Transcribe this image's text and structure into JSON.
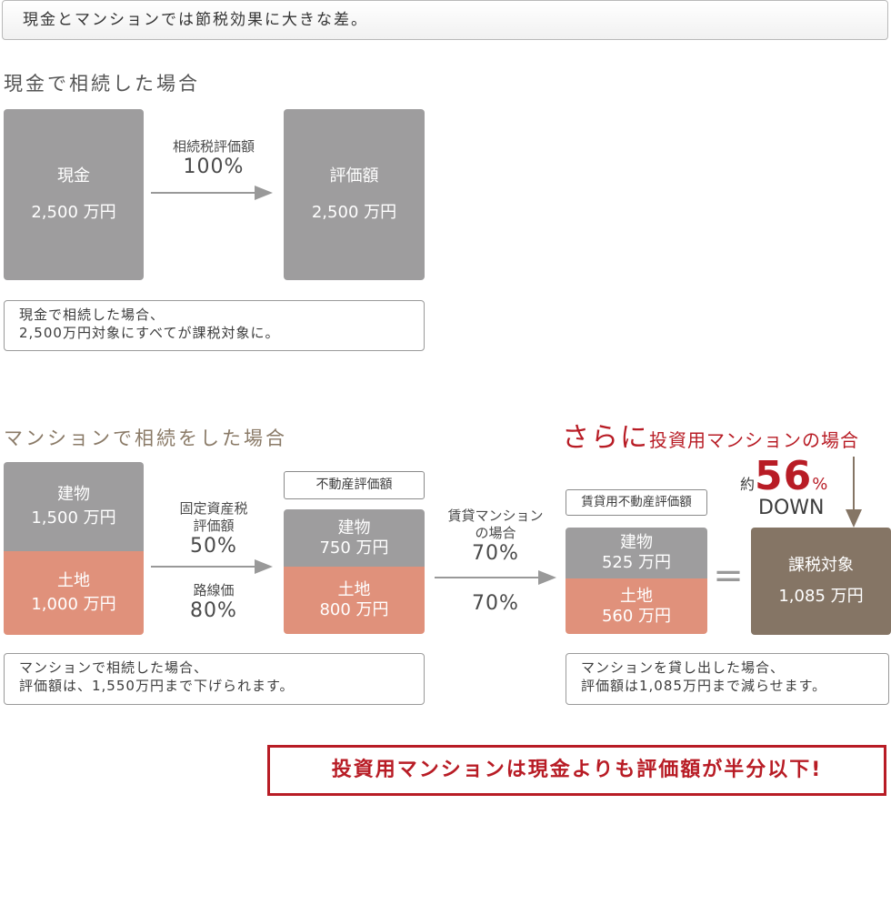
{
  "headline": "現金とマンションでは節税効果に大きな差。",
  "cash": {
    "title": "現金で相続した場合",
    "box1": {
      "name": "現金",
      "value": "2,500 万円"
    },
    "arrow": {
      "label": "相続税評価額",
      "percent": "100%"
    },
    "box2": {
      "name": "評価額",
      "value": "2,500 万円"
    },
    "note_line1": "現金で相続した場合、",
    "note_line2": "2,500万円対象にすべてが課税対象に。"
  },
  "mansion": {
    "title": "マンションで相続をした場合",
    "building": {
      "name": "建物",
      "value": "1,500 万円"
    },
    "land": {
      "name": "土地",
      "value": "1,000 万円"
    },
    "arrow1": {
      "label1": "固定資産税",
      "label2": "評価額",
      "percent1": "50%",
      "label3": "路線価",
      "percent2": "80%"
    },
    "eval_label": "不動産評価額",
    "eval_building": {
      "name": "建物",
      "value": "750 万円"
    },
    "eval_land": {
      "name": "土地",
      "value": "800 万円"
    },
    "arrow2": {
      "label1": "賃貸マンション",
      "label2": "の場合",
      "percent1": "70%",
      "percent2": "70%"
    },
    "note_line1": "マンションで相続した場合、",
    "note_line2": "評価額は、1,550万円まで下げられます。"
  },
  "investment": {
    "title_prefix": "さらに",
    "title_main": "投資用マンションの場合",
    "rental_label": "賃貸用不動産評価額",
    "rental_building": {
      "name": "建物",
      "value": "525 万円"
    },
    "rental_land": {
      "name": "土地",
      "value": "560 万円"
    },
    "equals": "=",
    "reduction": {
      "prefix": "約",
      "number": "56",
      "unit": "%",
      "word": "DOWN"
    },
    "taxable": {
      "name": "課税対象",
      "value": "1,085 万円"
    },
    "note_line1": "マンションを貸し出した場合、",
    "note_line2": "評価額は1,085万円まで減らせます。"
  },
  "conclusion": "投資用マンションは現金よりも評価額が半分以下!",
  "colors": {
    "gray": "#9e9d9e",
    "salmon": "#e0917b",
    "brown": "#857565",
    "accent_red": "#b81c25",
    "arrow_gray": "#999999"
  }
}
